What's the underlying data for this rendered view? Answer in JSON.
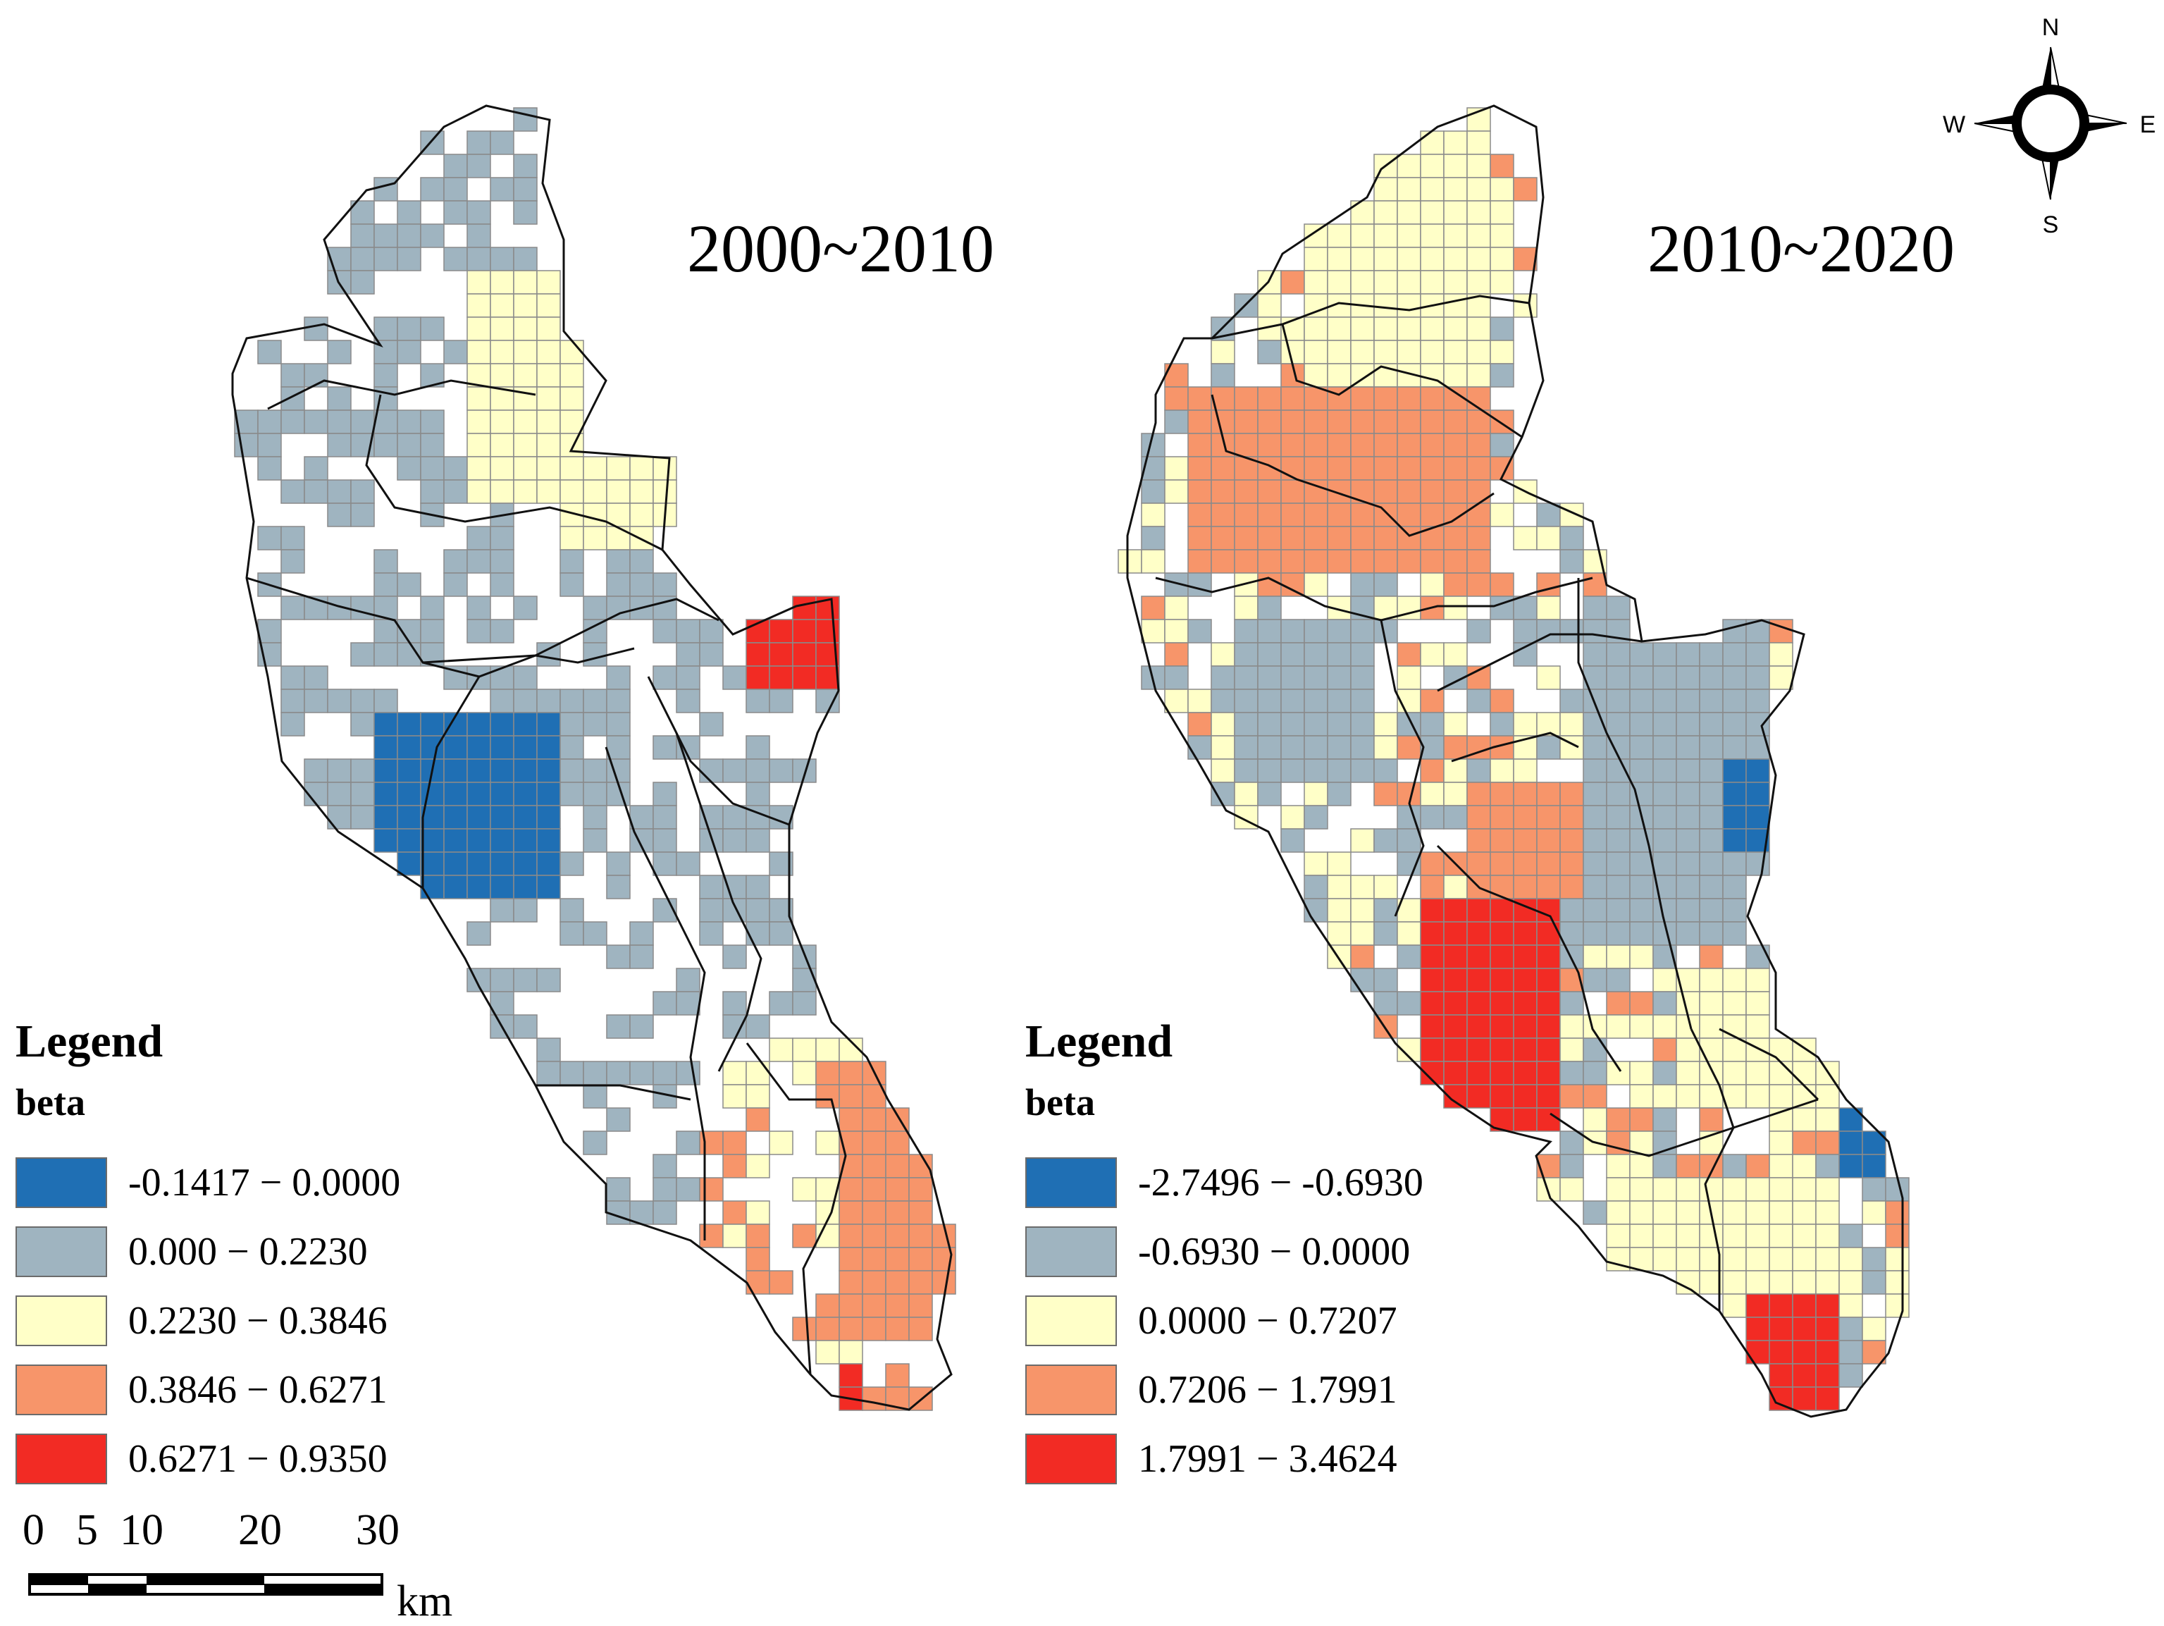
{
  "maps": [
    {
      "title": "2000~2010",
      "legend": {
        "heading": "Legend",
        "field": "beta",
        "classes": [
          {
            "label": "-0.1417 − 0.0000",
            "color": "#1f6fb4"
          },
          {
            "label": "0.000 − 0.2230",
            "color": "#9fb4c0"
          },
          {
            "label": "0.2230 − 0.3846",
            "color": "#ffffc8"
          },
          {
            "label": "0.3846 − 0.6271",
            "color": "#f7956a"
          },
          {
            "label": "0.6271 − 0.9350",
            "color": "#f22b24"
          }
        ]
      }
    },
    {
      "title": "2010~2020",
      "legend": {
        "heading": "Legend",
        "field": "beta",
        "classes": [
          {
            "label": "-2.7496 − -0.6930",
            "color": "#1f6fb4"
          },
          {
            "label": "-0.6930 − 0.0000",
            "color": "#9fb4c0"
          },
          {
            "label": "0.0000 − 0.7207",
            "color": "#ffffc8"
          },
          {
            "label": "0.7206 − 1.7991",
            "color": "#f7956a"
          },
          {
            "label": "1.7991 − 3.4624",
            "color": "#f22b24"
          }
        ]
      }
    }
  ],
  "scale_bar": {
    "ticks": [
      "0",
      "5",
      "10",
      "20",
      "30"
    ],
    "unit": "km"
  },
  "north_arrow": {
    "n": "N",
    "s": "S",
    "e": "E",
    "w": "W",
    "icon": "compass-rose-icon"
  }
}
